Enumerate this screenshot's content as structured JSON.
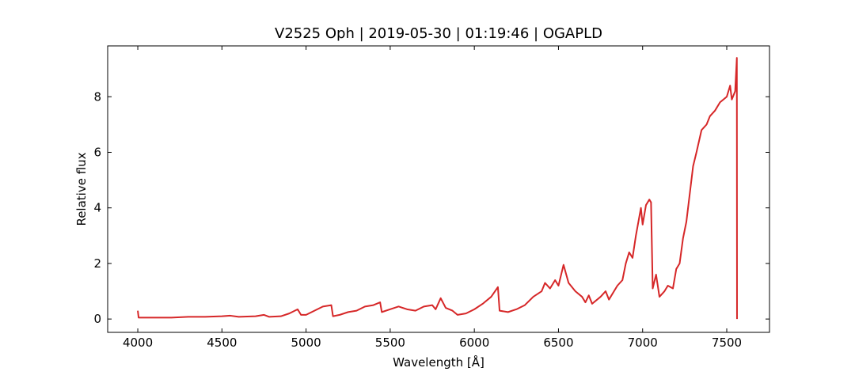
{
  "chart_data": {
    "type": "line",
    "title": "V2525 Oph | 2019-05-30 | 01:19:46 | OGAPLD",
    "x_label": "Wavelength [Å]",
    "y_label": "Relative flux",
    "x": [
      4000,
      4005,
      4100,
      4200,
      4300,
      4400,
      4500,
      4550,
      4600,
      4700,
      4750,
      4780,
      4850,
      4900,
      4950,
      4970,
      5000,
      5050,
      5100,
      5150,
      5160,
      5200,
      5250,
      5300,
      5350,
      5400,
      5440,
      5450,
      5500,
      5550,
      5600,
      5650,
      5700,
      5750,
      5770,
      5800,
      5830,
      5870,
      5900,
      5950,
      6000,
      6050,
      6100,
      6140,
      6150,
      6200,
      6250,
      6300,
      6350,
      6400,
      6420,
      6450,
      6480,
      6500,
      6530,
      6560,
      6600,
      6640,
      6660,
      6680,
      6700,
      6750,
      6780,
      6800,
      6850,
      6880,
      6900,
      6920,
      6940,
      6960,
      6990,
      7000,
      7020,
      7040,
      7050,
      7060,
      7080,
      7100,
      7130,
      7150,
      7180,
      7200,
      7220,
      7240,
      7260,
      7280,
      7300,
      7320,
      7350,
      7380,
      7400,
      7430,
      7460,
      7500,
      7520,
      7530,
      7550,
      7560,
      7561
    ],
    "series": [
      {
        "name": "flux",
        "color": "#d62728",
        "values": [
          0.3,
          0.05,
          0.05,
          0.05,
          0.08,
          0.08,
          0.1,
          0.12,
          0.08,
          0.1,
          0.15,
          0.08,
          0.1,
          0.2,
          0.35,
          0.15,
          0.15,
          0.3,
          0.45,
          0.5,
          0.1,
          0.15,
          0.25,
          0.3,
          0.45,
          0.5,
          0.6,
          0.25,
          0.35,
          0.45,
          0.35,
          0.3,
          0.45,
          0.5,
          0.35,
          0.75,
          0.4,
          0.3,
          0.15,
          0.2,
          0.35,
          0.55,
          0.8,
          1.15,
          0.3,
          0.25,
          0.35,
          0.5,
          0.8,
          1.0,
          1.3,
          1.1,
          1.4,
          1.2,
          1.95,
          1.3,
          1.0,
          0.8,
          0.6,
          0.85,
          0.55,
          0.8,
          1.0,
          0.7,
          1.2,
          1.4,
          2.0,
          2.4,
          2.2,
          3.0,
          4.0,
          3.4,
          4.1,
          4.3,
          4.2,
          1.1,
          1.6,
          0.8,
          1.0,
          1.2,
          1.1,
          1.8,
          2.0,
          2.9,
          3.5,
          4.5,
          5.5,
          6.0,
          6.8,
          7.0,
          7.3,
          7.5,
          7.8,
          8.0,
          8.4,
          7.9,
          8.2,
          9.4,
          0
        ]
      }
    ],
    "xlim": [
      3821,
      7754
    ],
    "ylim": [
      -0.48,
      9.83
    ],
    "xticks": [
      4000,
      4500,
      5000,
      5500,
      6000,
      6500,
      7000,
      7500
    ],
    "yticks": [
      0,
      2,
      4,
      6,
      8
    ]
  }
}
